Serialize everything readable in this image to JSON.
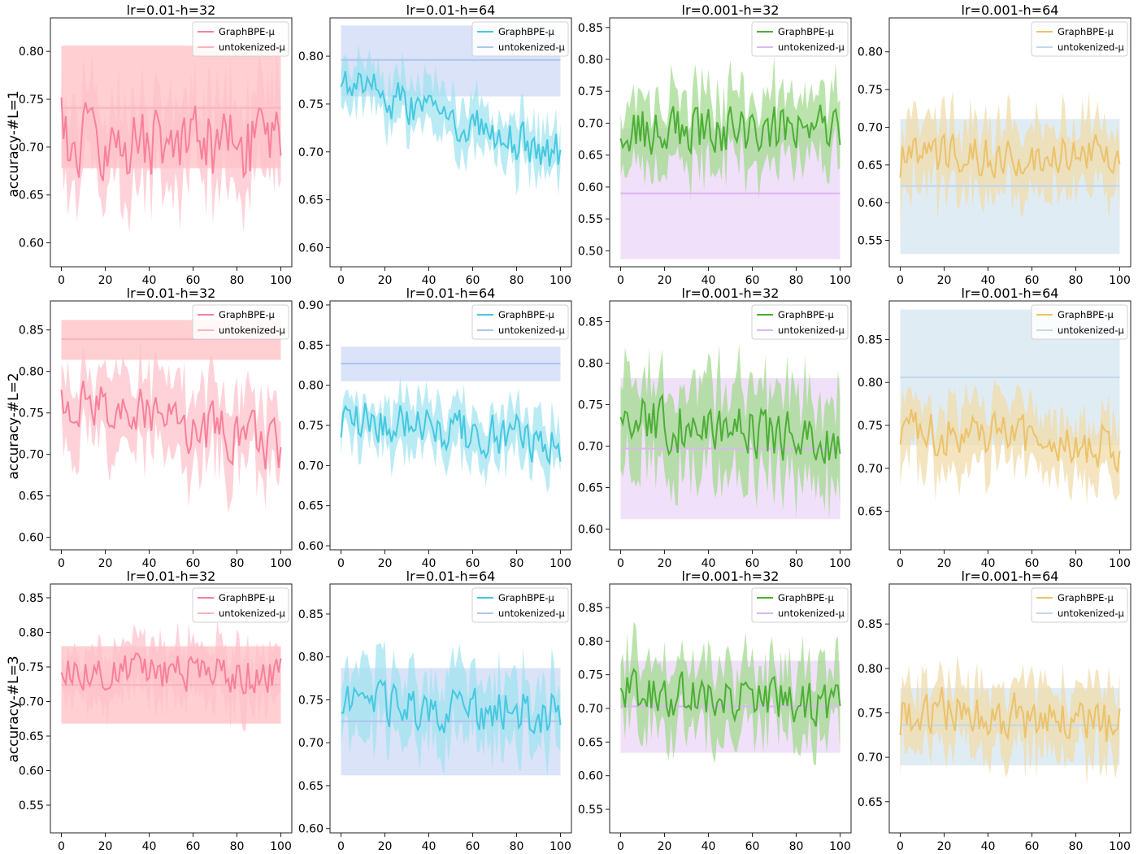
{
  "figure": {
    "row_ylabels": [
      "accuracy-#L=1",
      "accuracy-#L=2",
      "accuracy-#L=3"
    ],
    "legend_labels": [
      "GraphBPE-μ",
      "untokenized-μ"
    ],
    "colors": {
      "pink": "#f7819a",
      "pink_band": "#ffc0cb",
      "pink_base": "#f9b4bb",
      "pink_base_band": "#ffbfc3",
      "cyan": "#46c8e0",
      "cyan_band": "#9fe3f0",
      "blue_base": "#aec6ee",
      "blue_base_band": "#cdd9f5",
      "green": "#4caf35",
      "green_band": "#9fd98a",
      "purple_base": "#ddb8ee",
      "purple_base_band": "#ecd6f8",
      "gold": "#ecc26a",
      "gold_band": "#f0dba8",
      "lightblue_base": "#c3d8ea",
      "lightblue_base_band": "#d6e5f0",
      "overlap_gray": "#c8c8c8"
    }
  },
  "chart_data": [
    {
      "type": "line",
      "row": 0,
      "col": 0,
      "title": "lr=0.01-h=32",
      "xlim": [
        -5,
        105
      ],
      "xticks": [
        0,
        20,
        40,
        60,
        80,
        100
      ],
      "ylim": [
        0.575,
        0.835
      ],
      "yticks": [
        0.6,
        0.65,
        0.7,
        0.75,
        0.8
      ],
      "main_color": "pink",
      "band_color": "pink_band",
      "base_color": "pink_base",
      "base_band_color": "pink_base_band",
      "main": {
        "name": "GraphBPE-μ",
        "mean_level": 0.703,
        "std_spread": 0.055,
        "amplitude": 0.035,
        "start": 0.752,
        "trend": -0.01,
        "seed": 11
      },
      "baseline": {
        "name": "untokenized-μ",
        "value": 0.741,
        "band": [
          0.678,
          0.806
        ]
      }
    },
    {
      "type": "line",
      "row": 0,
      "col": 1,
      "title": "lr=0.01-h=64",
      "xlim": [
        -5,
        105
      ],
      "xticks": [
        0,
        20,
        40,
        60,
        80,
        100
      ],
      "ylim": [
        0.58,
        0.84
      ],
      "yticks": [
        0.6,
        0.65,
        0.7,
        0.75,
        0.8
      ],
      "main_color": "cyan",
      "band_color": "cyan_band",
      "base_color": "blue_base",
      "base_band_color": "blue_base_band",
      "main": {
        "name": "GraphBPE-μ",
        "mean_level": 0.735,
        "std_spread": 0.03,
        "amplitude": 0.02,
        "start": 0.768,
        "trend": -0.075,
        "seed": 23
      },
      "baseline": {
        "name": "untokenized-μ",
        "value": 0.796,
        "band": [
          0.758,
          0.832
        ]
      }
    },
    {
      "type": "line",
      "row": 0,
      "col": 2,
      "title": "lr=0.001-h=32",
      "xlim": [
        -5,
        105
      ],
      "xticks": [
        0,
        20,
        40,
        60,
        80,
        100
      ],
      "ylim": [
        0.475,
        0.865
      ],
      "yticks": [
        0.5,
        0.55,
        0.6,
        0.65,
        0.7,
        0.75,
        0.8,
        0.85
      ],
      "main_color": "green",
      "band_color": "green_band",
      "base_color": "purple_base",
      "base_band_color": "purple_base_band",
      "main": {
        "name": "GraphBPE-μ",
        "mean_level": 0.69,
        "std_spread": 0.065,
        "amplitude": 0.035,
        "start": 0.676,
        "trend": 0.0,
        "seed": 37
      },
      "baseline": {
        "name": "untokenized-μ",
        "value": 0.59,
        "band": [
          0.487,
          0.692
        ]
      }
    },
    {
      "type": "line",
      "row": 0,
      "col": 3,
      "title": "lr=0.001-h=64",
      "xlim": [
        -5,
        105
      ],
      "xticks": [
        0,
        20,
        40,
        60,
        80,
        100
      ],
      "ylim": [
        0.515,
        0.845
      ],
      "yticks": [
        0.55,
        0.6,
        0.65,
        0.7,
        0.75,
        0.8
      ],
      "main_color": "gold",
      "band_color": "gold_band",
      "base_color": "lightblue_base",
      "base_band_color": "lightblue_base_band",
      "main": {
        "name": "GraphBPE-μ",
        "mean_level": 0.662,
        "std_spread": 0.055,
        "amplitude": 0.025,
        "start": 0.633,
        "trend": 0.0,
        "seed": 41
      },
      "baseline": {
        "name": "untokenized-μ",
        "value": 0.622,
        "band": [
          0.532,
          0.711
        ]
      }
    },
    {
      "type": "line",
      "row": 1,
      "col": 0,
      "title": "lr=0.01-h=32",
      "xlim": [
        -5,
        105
      ],
      "xticks": [
        0,
        20,
        40,
        60,
        80,
        100
      ],
      "ylim": [
        0.585,
        0.885
      ],
      "yticks": [
        0.6,
        0.65,
        0.7,
        0.75,
        0.8,
        0.85
      ],
      "main_color": "pink",
      "band_color": "pink_band",
      "base_color": "pink_base",
      "base_band_color": "pink_base_band",
      "main": {
        "name": "GraphBPE-μ",
        "mean_level": 0.74,
        "std_spread": 0.055,
        "amplitude": 0.03,
        "start": 0.778,
        "trend": -0.065,
        "seed": 53
      },
      "baseline": {
        "name": "untokenized-μ",
        "value": 0.839,
        "band": [
          0.814,
          0.862
        ]
      }
    },
    {
      "type": "line",
      "row": 1,
      "col": 1,
      "title": "lr=0.01-h=64",
      "xlim": [
        -5,
        105
      ],
      "xticks": [
        0,
        20,
        40,
        60,
        80,
        100
      ],
      "ylim": [
        0.595,
        0.905
      ],
      "yticks": [
        0.6,
        0.65,
        0.7,
        0.75,
        0.8,
        0.85,
        0.9
      ],
      "main_color": "cyan",
      "band_color": "cyan_band",
      "base_color": "blue_base",
      "base_band_color": "blue_base_band",
      "main": {
        "name": "GraphBPE-μ",
        "mean_level": 0.745,
        "std_spread": 0.035,
        "amplitude": 0.025,
        "start": 0.735,
        "trend": -0.035,
        "seed": 67
      },
      "baseline": {
        "name": "untokenized-μ",
        "value": 0.827,
        "band": [
          0.805,
          0.848
        ]
      }
    },
    {
      "type": "line",
      "row": 1,
      "col": 2,
      "title": "lr=0.001-h=32",
      "xlim": [
        -5,
        105
      ],
      "xticks": [
        0,
        20,
        40,
        60,
        80,
        100
      ],
      "ylim": [
        0.575,
        0.875
      ],
      "yticks": [
        0.6,
        0.65,
        0.7,
        0.75,
        0.8,
        0.85
      ],
      "main_color": "green",
      "band_color": "green_band",
      "base_color": "purple_base",
      "base_band_color": "purple_base_band",
      "main": {
        "name": "GraphBPE-μ",
        "mean_level": 0.72,
        "std_spread": 0.065,
        "amplitude": 0.03,
        "start": 0.735,
        "trend": -0.02,
        "seed": 71
      },
      "baseline": {
        "name": "untokenized-μ",
        "value": 0.697,
        "band": [
          0.612,
          0.782
        ]
      }
    },
    {
      "type": "line",
      "row": 1,
      "col": 3,
      "title": "lr=0.001-h=64",
      "xlim": [
        -5,
        105
      ],
      "xticks": [
        0,
        20,
        40,
        60,
        80,
        100
      ],
      "ylim": [
        0.605,
        0.895
      ],
      "yticks": [
        0.65,
        0.7,
        0.75,
        0.8,
        0.85
      ],
      "main_color": "gold",
      "band_color": "gold_band",
      "base_color": "lightblue_base",
      "base_band_color": "lightblue_base_band",
      "main": {
        "name": "GraphBPE-μ",
        "mean_level": 0.735,
        "std_spread": 0.045,
        "amplitude": 0.025,
        "start": 0.728,
        "trend": -0.02,
        "seed": 83
      },
      "baseline": {
        "name": "untokenized-μ",
        "value": 0.806,
        "band": [
          0.727,
          0.885
        ]
      }
    },
    {
      "type": "line",
      "row": 2,
      "col": 0,
      "title": "lr=0.01-h=32",
      "xlim": [
        -5,
        105
      ],
      "xticks": [
        0,
        20,
        40,
        60,
        80,
        100
      ],
      "ylim": [
        0.51,
        0.87
      ],
      "yticks": [
        0.55,
        0.6,
        0.65,
        0.7,
        0.75,
        0.8,
        0.85
      ],
      "main_color": "pink",
      "band_color": "pink_band",
      "base_color": "pink_base",
      "base_band_color": "pink_base_band",
      "main": {
        "name": "GraphBPE-μ",
        "mean_level": 0.742,
        "std_spread": 0.045,
        "amplitude": 0.025,
        "start": 0.742,
        "trend": -0.01,
        "seed": 97
      },
      "baseline": {
        "name": "untokenized-μ",
        "value": 0.724,
        "band": [
          0.668,
          0.78
        ]
      }
    },
    {
      "type": "line",
      "row": 2,
      "col": 1,
      "title": "lr=0.01-h=64",
      "xlim": [
        -5,
        105
      ],
      "xticks": [
        0,
        20,
        40,
        60,
        80,
        100
      ],
      "ylim": [
        0.595,
        0.885
      ],
      "yticks": [
        0.6,
        0.65,
        0.7,
        0.75,
        0.8,
        0.85
      ],
      "main_color": "cyan",
      "band_color": "cyan_band",
      "base_color": "blue_base",
      "base_band_color": "blue_base_band",
      "main": {
        "name": "GraphBPE-μ",
        "mean_level": 0.74,
        "std_spread": 0.045,
        "amplitude": 0.025,
        "start": 0.735,
        "trend": -0.01,
        "seed": 103
      },
      "baseline": {
        "name": "untokenized-μ",
        "value": 0.725,
        "band": [
          0.662,
          0.787
        ]
      }
    },
    {
      "type": "line",
      "row": 2,
      "col": 2,
      "title": "lr=0.001-h=32",
      "xlim": [
        -5,
        105
      ],
      "xticks": [
        0,
        20,
        40,
        60,
        80,
        100
      ],
      "ylim": [
        0.515,
        0.885
      ],
      "yticks": [
        0.55,
        0.6,
        0.65,
        0.7,
        0.75,
        0.8,
        0.85
      ],
      "main_color": "green",
      "band_color": "green_band",
      "base_color": "purple_base",
      "base_band_color": "purple_base_band",
      "main": {
        "name": "GraphBPE-μ",
        "mean_level": 0.715,
        "std_spread": 0.06,
        "amplitude": 0.03,
        "start": 0.73,
        "trend": -0.02,
        "seed": 109
      },
      "baseline": {
        "name": "untokenized-μ",
        "value": 0.703,
        "band": [
          0.634,
          0.771
        ]
      }
    },
    {
      "type": "line",
      "row": 2,
      "col": 3,
      "title": "lr=0.001-h=64",
      "xlim": [
        -5,
        105
      ],
      "xticks": [
        0,
        20,
        40,
        60,
        80,
        100
      ],
      "ylim": [
        0.615,
        0.895
      ],
      "yticks": [
        0.65,
        0.7,
        0.75,
        0.8,
        0.85
      ],
      "main_color": "gold",
      "band_color": "gold_band",
      "base_color": "lightblue_base",
      "base_band_color": "lightblue_base_band",
      "main": {
        "name": "GraphBPE-μ",
        "mean_level": 0.745,
        "std_spread": 0.045,
        "amplitude": 0.025,
        "start": 0.725,
        "trend": -0.02,
        "seed": 127
      },
      "baseline": {
        "name": "untokenized-μ",
        "value": 0.736,
        "band": [
          0.691,
          0.778
        ]
      }
    }
  ]
}
